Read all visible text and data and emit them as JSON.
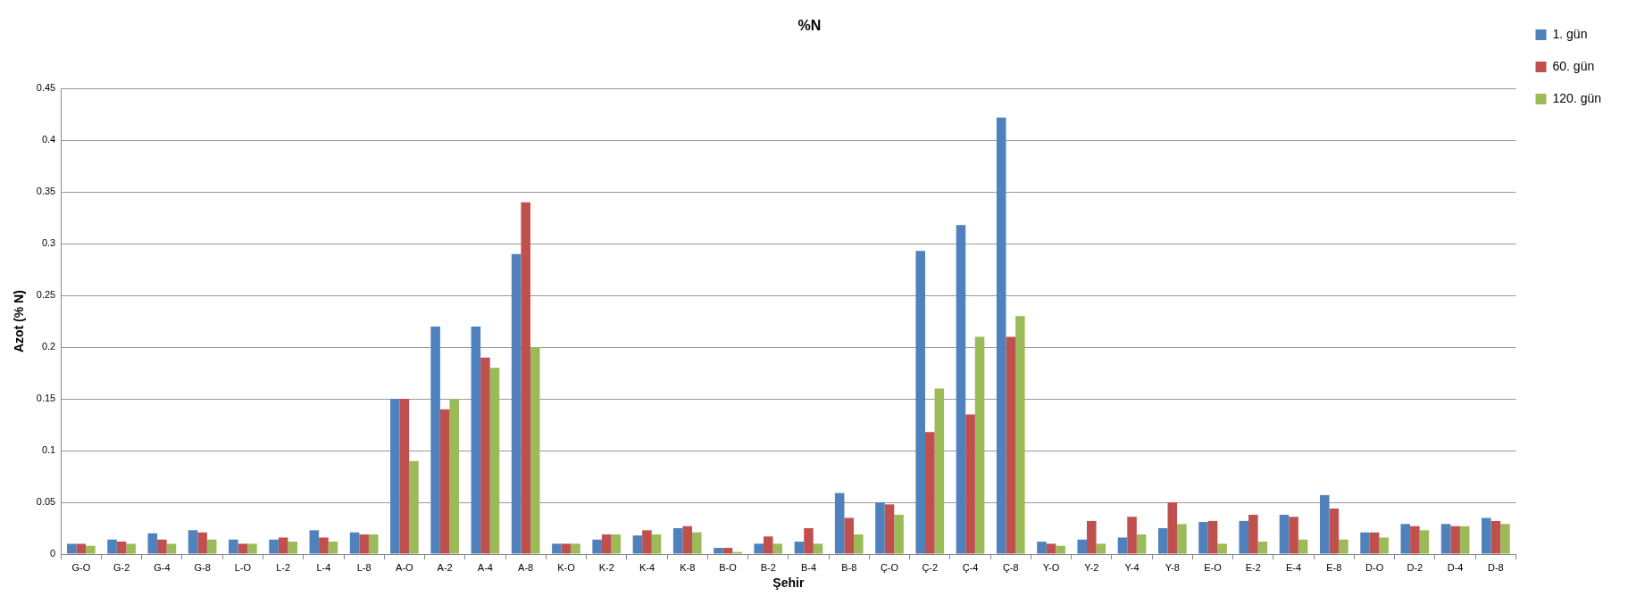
{
  "chart_data": {
    "type": "bar",
    "title": "%N",
    "xlabel": "Şehir",
    "ylabel": "Azot (% N)",
    "categories": [
      "G-O",
      "G-2",
      "G-4",
      "G-8",
      "L-O",
      "L-2",
      "L-4",
      "L-8",
      "A-O",
      "A-2",
      "A-4",
      "A-8",
      "K-O",
      "K-2",
      "K-4",
      "K-8",
      "B-O",
      "B-2",
      "B-4",
      "B-8",
      "Ç-O",
      "Ç-2",
      "Ç-4",
      "Ç-8",
      "Y-O",
      "Y-2",
      "Y-4",
      "Y-8",
      "E-O",
      "E-2",
      "E-4",
      "E-8",
      "D-O",
      "D-2",
      "D-4",
      "D-8"
    ],
    "series": [
      {
        "name": "1. gün",
        "color": "#4f81bd",
        "values": [
          0.01,
          0.014,
          0.02,
          0.023,
          0.014,
          0.014,
          0.023,
          0.021,
          0.15,
          0.22,
          0.22,
          0.29,
          0.01,
          0.014,
          0.018,
          0.025,
          0.006,
          0.01,
          0.012,
          0.059,
          0.05,
          0.293,
          0.318,
          0.422,
          0.012,
          0.014,
          0.016,
          0.025,
          0.031,
          0.032,
          0.038,
          0.057,
          0.021,
          0.029,
          0.029,
          0.035
        ]
      },
      {
        "name": "60. gün",
        "color": "#c0504d",
        "values": [
          0.01,
          0.012,
          0.014,
          0.021,
          0.01,
          0.016,
          0.016,
          0.019,
          0.15,
          0.14,
          0.19,
          0.34,
          0.01,
          0.019,
          0.023,
          0.027,
          0.006,
          0.017,
          0.025,
          0.035,
          0.048,
          0.118,
          0.135,
          0.21,
          0.01,
          0.032,
          0.036,
          0.05,
          0.032,
          0.038,
          0.036,
          0.044,
          0.021,
          0.027,
          0.027,
          0.032
        ]
      },
      {
        "name": "120. gün",
        "color": "#9bbb59",
        "values": [
          0.008,
          0.01,
          0.01,
          0.014,
          0.01,
          0.012,
          0.012,
          0.019,
          0.09,
          0.15,
          0.18,
          0.2,
          0.01,
          0.019,
          0.019,
          0.021,
          0.002,
          0.01,
          0.01,
          0.019,
          0.038,
          0.16,
          0.21,
          0.23,
          0.008,
          0.01,
          0.019,
          0.029,
          0.01,
          0.012,
          0.014,
          0.014,
          0.016,
          0.023,
          0.027,
          0.029
        ]
      }
    ],
    "ylim": [
      0,
      0.45
    ],
    "yticks": [
      0,
      0.05,
      0.1,
      0.15,
      0.2,
      0.25,
      0.3,
      0.35,
      0.4,
      0.45
    ],
    "grid": "y",
    "legend": "top right"
  }
}
